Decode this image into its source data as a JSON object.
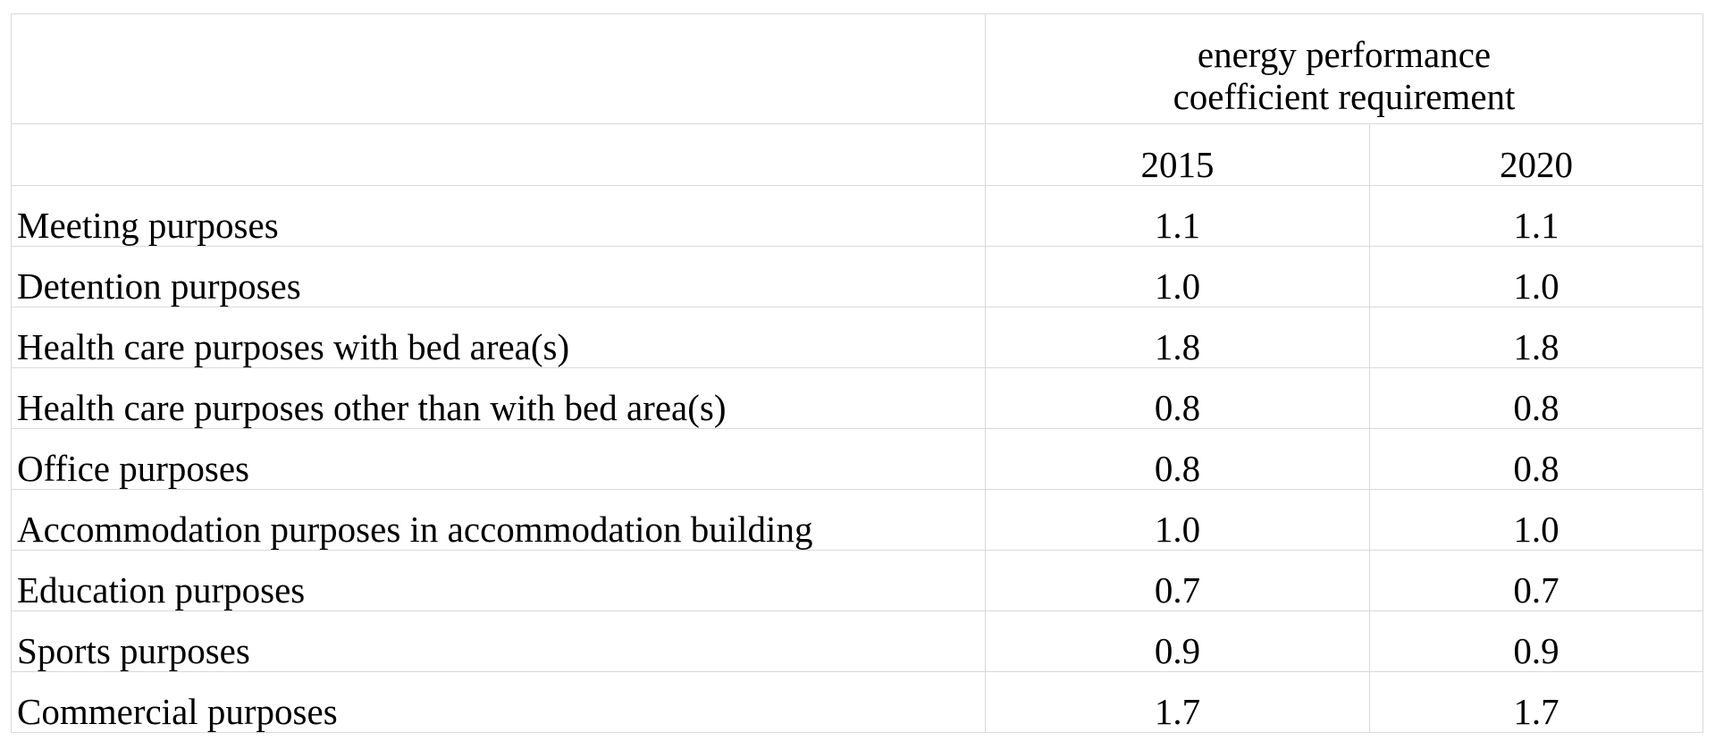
{
  "table": {
    "header": "energy performance coefficient requirement",
    "years": [
      "2015",
      "2020"
    ],
    "rows": [
      [
        "Meeting purposes",
        "1.1",
        "1.1"
      ],
      [
        "Detention purposes",
        "1.0",
        "1.0"
      ],
      [
        "Health care purposes with bed area(s)",
        "1.8",
        "1.8"
      ],
      [
        "Health care purposes other than with bed area(s)",
        "0.8",
        "0.8"
      ],
      [
        "Office purposes",
        "0.8",
        "0.8"
      ],
      [
        "Accommodation purposes in accommodation building",
        "1.0",
        "1.0"
      ],
      [
        "Education purposes",
        "0.7",
        "0.7"
      ],
      [
        "Sports purposes",
        "0.9",
        "0.9"
      ],
      [
        "Commercial purposes",
        "1.7",
        "1.7"
      ]
    ]
  }
}
